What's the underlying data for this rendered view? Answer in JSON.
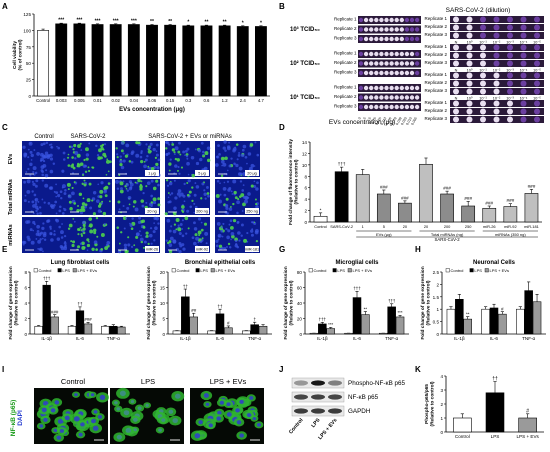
{
  "panel_letters": [
    "A",
    "B",
    "C",
    "D",
    "E",
    "F",
    "G",
    "H",
    "I",
    "J",
    "K"
  ],
  "panelB": {
    "left_header": "",
    "right_header": "SARS-CoV-2 (dilution)",
    "rows": [
      "10³ TCID₅₀",
      "10² TCID₅₀",
      "10¹ TCID₅₀"
    ],
    "replicates": [
      "Replicate 1",
      "Replicate 2",
      "Replicate 3"
    ],
    "left_cols": [
      "0",
      "5",
      "2.5",
      "1.25",
      "0.625",
      "0.313",
      "0.156",
      "0.078",
      "0.039",
      "0.020",
      "0.010",
      "0.005"
    ],
    "right_cols": [
      "N",
      "10⁰",
      "10⁻¹",
      "10⁻²",
      "10⁻³",
      "10⁻⁴",
      "10⁻⁵"
    ],
    "xlabel": "EVs concentration (μg)",
    "well_colors": {
      "stained": "#6b3fa0",
      "clear": "#e8def0"
    }
  },
  "panelC": {
    "col_headers": [
      "Control",
      "SARS-CoV-2",
      "SARS-CoV-2 + EVs or miRNAs"
    ],
    "row_labels": [
      "EVs",
      "Total miRNAs",
      "miRNAs"
    ],
    "tile_labels": [
      [
        "",
        "",
        "1 μg",
        "5 μg",
        "20 μg"
      ],
      [
        "",
        "",
        "20 ng",
        "200 ng",
        "250 ng"
      ],
      [
        "",
        "",
        "miR-26",
        "miR-92",
        "miR-181"
      ]
    ]
  },
  "panelI": {
    "col_headers": [
      "Control",
      "LPS",
      "LPS + EVs"
    ],
    "ylabel": "NF-κB (p65)",
    "ylabel2": "DAPI"
  },
  "panelJ": {
    "bands": [
      "Phospho-NF-κB p65",
      "NF-κB p65",
      "GAPDH"
    ],
    "lanes": [
      "Control",
      "LPS",
      "LPS + EVs"
    ]
  },
  "chart_data": [
    {
      "id": "A",
      "type": "bar",
      "ylabel": "Cell viability (% of control)",
      "xlabel": "EVs concentration (μg)",
      "categories": [
        "Control",
        "0.003",
        "0.005",
        "0.01",
        "0.02",
        "0.04",
        "0.06",
        "0.15",
        "0.3",
        "0.6",
        "1.2",
        "2.4",
        "4.7"
      ],
      "values": [
        100,
        110,
        110,
        109,
        109,
        109,
        108,
        108,
        107,
        107,
        107,
        106,
        106
      ],
      "errors": [
        2,
        1,
        1,
        1,
        1,
        1,
        1,
        1,
        1,
        1,
        1,
        1,
        1
      ],
      "sig": [
        "",
        "***",
        "***",
        "***",
        "***",
        "***",
        "**",
        "**",
        "*",
        "**",
        "**",
        "*",
        "*"
      ],
      "ylim": [
        0,
        125
      ],
      "yticks": [
        0,
        25,
        50,
        75,
        100,
        125
      ]
    },
    {
      "id": "D",
      "type": "bar",
      "ylabel": "Fold change of fluorescence intensity (Relative to control)",
      "categories": [
        "Control",
        "SARS-CoV-2",
        "1",
        "5",
        "20",
        "20",
        "200",
        "250",
        "miR-26",
        "miR-92",
        "miR-181"
      ],
      "values": [
        1,
        8.8,
        8.3,
        4.9,
        3.3,
        10.1,
        4.9,
        2.8,
        2.4,
        2.7,
        5.0
      ],
      "errors": [
        0.6,
        0.8,
        0.9,
        0.7,
        0.4,
        1.1,
        0.5,
        0.8,
        0.4,
        0.5,
        0.7
      ],
      "colors": [
        "#ffffff",
        "#000000",
        "#bfbfbf",
        "#8c8c8c",
        "#8c8c8c",
        "#bfbfbf",
        "#8c8c8c",
        "#8c8c8c",
        "#bfbfbf",
        "#bfbfbf",
        "#bfbfbf"
      ],
      "sig": [
        "*",
        "†††",
        "",
        "###",
        "###",
        "",
        "###",
        "###",
        "###",
        "###",
        "###"
      ],
      "ylim": [
        0,
        14
      ],
      "yticks": [
        0,
        2,
        4,
        6,
        8,
        10,
        12,
        14
      ],
      "group_labels": [
        "EVs (μg)",
        "Total miRNAs (ng)",
        "miRNAs (350 ng)"
      ],
      "xlabel": "SARS-CoV-2"
    },
    {
      "id": "E",
      "type": "bar",
      "title": "Lung fibroblast cells",
      "ylabel": "Fold change of gene expression (Relative to control)",
      "categories": [
        "IL-1β",
        "IL-6",
        "TNF-α"
      ],
      "legend": [
        "Control",
        "LPS",
        "LPS + EVs"
      ],
      "series": [
        {
          "name": "Control",
          "values": [
            1,
            1,
            1
          ],
          "errors": [
            0.1,
            0.1,
            0.1
          ]
        },
        {
          "name": "LPS",
          "values": [
            6.3,
            3.0,
            1.0
          ],
          "errors": [
            0.5,
            0.5,
            0.2
          ]
        },
        {
          "name": "LPS + EVs",
          "values": [
            2.2,
            1.3,
            0.9
          ],
          "errors": [
            0.3,
            0.2,
            0.1
          ]
        }
      ],
      "sig": [
        [
          "",
          "†††",
          "###"
        ],
        [
          "",
          "††",
          "###"
        ],
        [
          "",
          "",
          ""
        ]
      ],
      "ylim": [
        0,
        8
      ],
      "yticks": [
        0,
        2,
        4,
        6,
        8
      ]
    },
    {
      "id": "F",
      "type": "bar",
      "title": "Bronchial epithelial cells",
      "ylabel": "Fold change of gene expression (Relative to control)",
      "categories": [
        "IL-1β",
        "IL-6",
        "TNF-α"
      ],
      "legend": [
        "Control",
        "LPS",
        "LPS + EVs"
      ],
      "series": [
        {
          "name": "Control",
          "values": [
            1,
            1,
            1
          ],
          "errors": [
            0.1,
            0.1,
            0.1
          ]
        },
        {
          "name": "LPS",
          "values": [
            12,
            6.5,
            3.0
          ],
          "errors": [
            2.5,
            1.5,
            0.8
          ]
        },
        {
          "name": "LPS + EVs",
          "values": [
            5.5,
            2.0,
            2.5
          ],
          "errors": [
            1.2,
            0.6,
            0.5
          ]
        }
      ],
      "sig": [
        [
          "",
          "††",
          "##"
        ],
        [
          "",
          "††",
          "#"
        ],
        [
          "",
          "†",
          ""
        ]
      ],
      "ylim": [
        0,
        20
      ],
      "yticks": [
        0,
        5,
        10,
        15,
        20
      ]
    },
    {
      "id": "G",
      "type": "bar",
      "title": "Microglial cells",
      "ylabel": "Fold change of gene expression (Relative to control)",
      "categories": [
        "IL-1β",
        "IL-6",
        "TNF-α"
      ],
      "legend": [
        "Control",
        "LPS",
        "LPS + EVs"
      ],
      "series": [
        {
          "name": "Control",
          "values": [
            1,
            1,
            1
          ],
          "errors": [
            0.1,
            0.1,
            0.1
          ]
        },
        {
          "name": "LPS",
          "values": [
            13,
            47,
            35
          ],
          "errors": [
            2,
            8,
            4
          ]
        },
        {
          "name": "LPS + EVs",
          "values": [
            7,
            25,
            22
          ],
          "errors": [
            1.5,
            4,
            2
          ]
        }
      ],
      "sig": [
        [
          "",
          "†††",
          "***"
        ],
        [
          "",
          "†††",
          "**"
        ],
        [
          "",
          "†††",
          "***"
        ]
      ],
      "ylim": [
        0,
        80
      ],
      "yticks": [
        0,
        20,
        40,
        60,
        80
      ]
    },
    {
      "id": "H",
      "type": "bar",
      "title": "Neuronal Cells",
      "ylabel": "Fold change of gene expression (Relative to control)",
      "categories": [
        "IL-1β",
        "IL-6",
        "TNF-α"
      ],
      "legend": [
        "Control",
        "LPS",
        "LPS + EVs"
      ],
      "series": [
        {
          "name": "Control",
          "values": [
            1,
            1,
            1
          ],
          "errors": [
            0.1,
            0.1,
            0.1
          ]
        },
        {
          "name": "LPS",
          "values": [
            1.4,
            1.05,
            1.75
          ],
          "errors": [
            0.2,
            0.15,
            0.35
          ]
        },
        {
          "name": "LPS + EVs",
          "values": [
            0.6,
            0.8,
            1.3
          ],
          "errors": [
            0.1,
            0.1,
            0.3
          ]
        }
      ],
      "sig": [
        [
          "",
          "",
          "**"
        ],
        [
          "",
          "",
          "#"
        ],
        [
          "",
          "",
          ""
        ]
      ],
      "ylim": [
        0,
        2.5
      ],
      "yticks": [
        0,
        0.5,
        1,
        1.5,
        2,
        2.5
      ]
    },
    {
      "id": "K",
      "type": "bar",
      "ylabel": "Phospho-p65/p65 (Relative to control)",
      "categories": [
        "Control",
        "LPS",
        "LPS + EVs"
      ],
      "values": [
        1,
        2.8,
        1.0
      ],
      "errors": [
        0.3,
        0.8,
        0.3
      ],
      "colors": [
        "#ffffff",
        "#000000",
        "#9a9a9a"
      ],
      "sig": [
        "",
        "††",
        "#"
      ],
      "ylim": [
        0,
        4
      ],
      "yticks": [
        0,
        1,
        2,
        3,
        4
      ]
    }
  ]
}
